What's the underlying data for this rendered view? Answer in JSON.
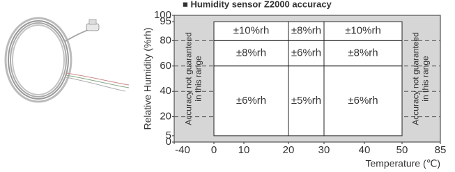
{
  "chart_data": {
    "type": "region",
    "title": "■ Humidity sensor Z2000 accuracy",
    "xlabel": "Temperature (℃)",
    "ylabel": "Relative Humidity (%rh)",
    "xlim": [
      -40,
      85
    ],
    "xticks": [
      -40,
      0,
      10,
      20,
      30,
      40,
      50,
      85
    ],
    "ylim": [
      0,
      100
    ],
    "yticks": [
      0,
      5,
      20,
      40,
      60,
      80,
      95,
      100
    ],
    "dashed_lines": [
      20,
      40,
      60,
      80
    ],
    "background_color": "#d6d6d6",
    "region_color": "#ffffff",
    "regions": [
      {
        "x": [
          0,
          20
        ],
        "y": [
          80,
          95
        ],
        "label": "±10%rh"
      },
      {
        "x": [
          20,
          30
        ],
        "y": [
          80,
          95
        ],
        "label": "±8%rh"
      },
      {
        "x": [
          30,
          50
        ],
        "y": [
          80,
          95
        ],
        "label": "±10%rh"
      },
      {
        "x": [
          0,
          20
        ],
        "y": [
          60,
          80
        ],
        "label": "±8%rh"
      },
      {
        "x": [
          20,
          30
        ],
        "y": [
          60,
          80
        ],
        "label": "±6%rh"
      },
      {
        "x": [
          30,
          50
        ],
        "y": [
          60,
          80
        ],
        "label": "±8%rh"
      },
      {
        "x": [
          0,
          20
        ],
        "y": [
          5,
          60
        ],
        "label": "±6%rh"
      },
      {
        "x": [
          20,
          30
        ],
        "y": [
          5,
          60
        ],
        "label": "±5%rh"
      },
      {
        "x": [
          30,
          50
        ],
        "y": [
          5,
          60
        ],
        "label": "±6%rh"
      }
    ],
    "notes": [
      {
        "x": [
          -40,
          0
        ],
        "lines": [
          "Accuracy not guaranteed",
          "in this range"
        ]
      },
      {
        "x": [
          50,
          85
        ],
        "lines": [
          "Accuracy not guaranteed",
          "in this range"
        ]
      }
    ]
  }
}
